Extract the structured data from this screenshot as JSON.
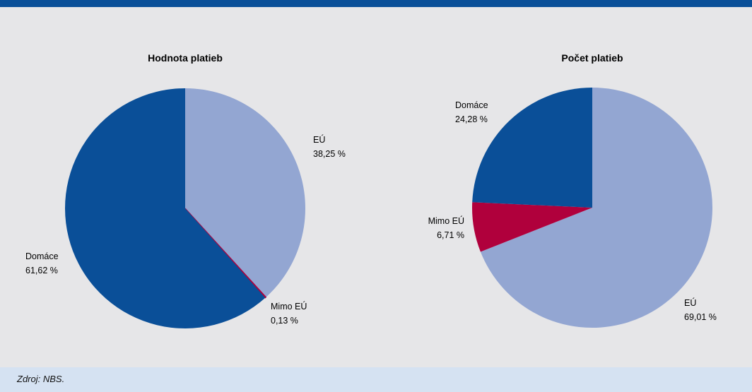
{
  "colors": {
    "domace": "#0a4f98",
    "eu": "#93a6d2",
    "mimo_eu": "#b0003c",
    "background": "#e6e6e8",
    "header": "#0a4f98",
    "source_bg": "#d5e2f2"
  },
  "chart_data": [
    {
      "type": "pie",
      "title": "Hodnota platieb",
      "slices": [
        {
          "label": "EÚ",
          "value": 38.25,
          "display": "38,25 %",
          "color": "#93a6d2"
        },
        {
          "label": "Mimo EÚ",
          "value": 0.13,
          "display": "0,13 %",
          "color": "#b0003c"
        },
        {
          "label": "Domáce",
          "value": 61.62,
          "display": "61,62 %",
          "color": "#0a4f98"
        }
      ]
    },
    {
      "type": "pie",
      "title": "Počet platieb",
      "slices": [
        {
          "label": "EÚ",
          "value": 69.01,
          "display": "69,01 %",
          "color": "#93a6d2"
        },
        {
          "label": "Mimo EÚ",
          "value": 6.71,
          "display": "6,71 %",
          "color": "#b0003c"
        },
        {
          "label": "Domáce",
          "value": 24.28,
          "display": "24,28 %",
          "color": "#0a4f98"
        }
      ]
    }
  ],
  "source": "Zdroj: NBS."
}
